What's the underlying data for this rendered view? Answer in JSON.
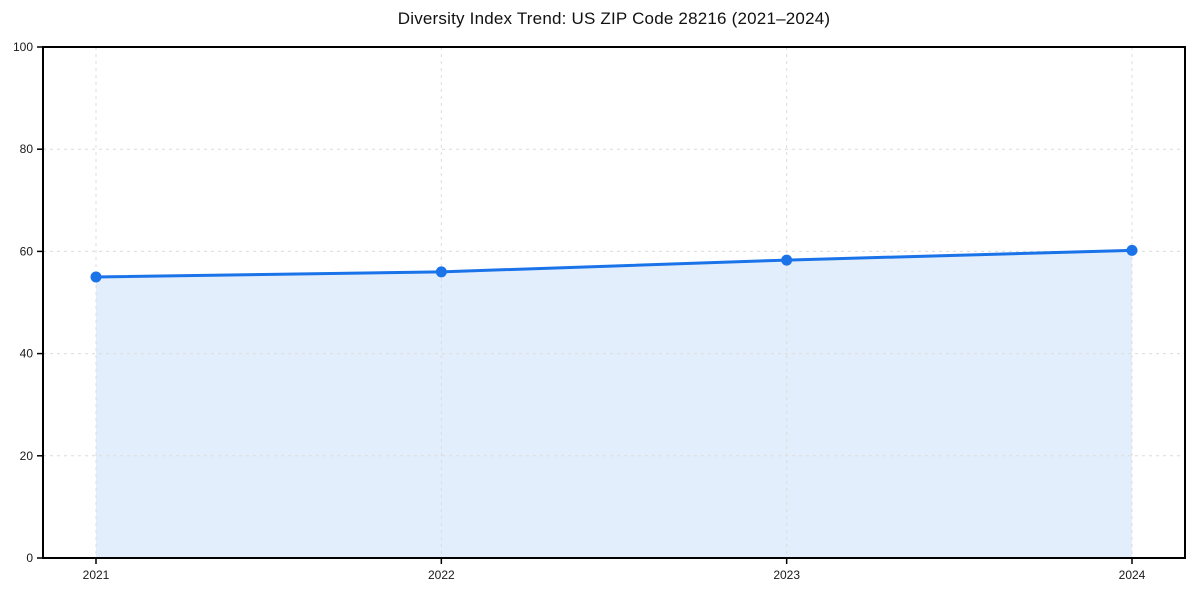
{
  "chart_data": {
    "type": "area",
    "title": "Diversity Index Trend: US ZIP Code 28216 (2021–2024)",
    "categories": [
      "2021",
      "2022",
      "2023",
      "2024"
    ],
    "series": [
      {
        "name": "Diversity Index",
        "values": [
          55,
          56,
          58.3,
          60.2
        ]
      }
    ],
    "xlabel": "",
    "ylabel": "",
    "ylim": [
      0,
      100
    ],
    "y_ticks": [
      0,
      20,
      40,
      60,
      80,
      100
    ],
    "grid": true,
    "grid_style": "dashed",
    "legend": "none",
    "colors": {
      "line": "#1a73e8",
      "marker": "#1a73e8",
      "area_fill": "rgba(26,115,232,0.12)",
      "gridline": "#dcdcdc",
      "axis_border": "#000000",
      "tick_label": "#1a1a1a",
      "background": "#ffffff"
    }
  }
}
